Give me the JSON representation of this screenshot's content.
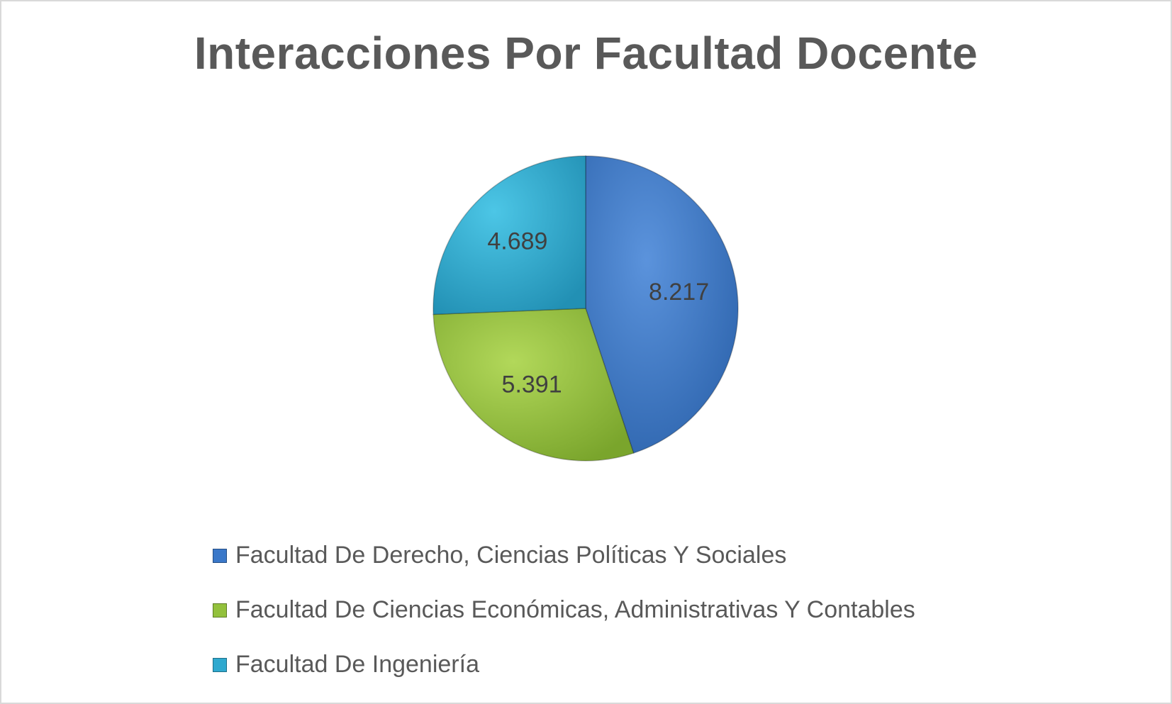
{
  "chart_data": {
    "type": "pie",
    "title": "Interacciones Por Facultad Docente",
    "categories": [
      "Facultad De Derecho, Ciencias Políticas Y Sociales",
      "Facultad De Ciencias Económicas, Administrativas Y Contables",
      "Facultad De Ingeniería"
    ],
    "values": [
      8217,
      5391,
      4689
    ],
    "data_labels": [
      "8.217",
      "5.391",
      "4.689"
    ],
    "colors": [
      "#3a78c9",
      "#93c13c",
      "#2fa9cf"
    ],
    "legend_position": "bottom",
    "start_angle": "12 o'clock, clockwise"
  }
}
